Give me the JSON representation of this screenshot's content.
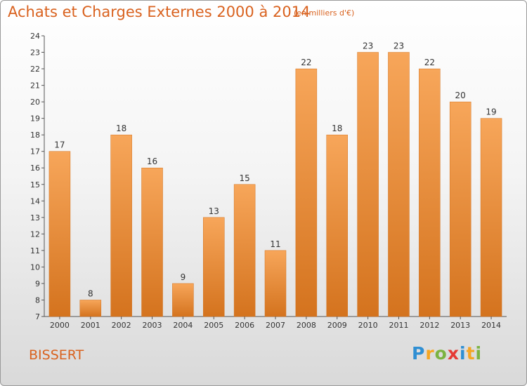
{
  "chart_data": {
    "type": "bar",
    "title": "Achats et Charges Externes 2000 à 2014",
    "subtitle": "(en milliers d'€)",
    "categories": [
      "2000",
      "2001",
      "2002",
      "2003",
      "2004",
      "2005",
      "2006",
      "2007",
      "2008",
      "2009",
      "2010",
      "2011",
      "2012",
      "2013",
      "2014"
    ],
    "values": [
      17,
      8,
      18,
      16,
      9,
      13,
      15,
      11,
      22,
      18,
      23,
      23,
      22,
      20,
      19
    ],
    "ylim": [
      7,
      24
    ],
    "yticks": [
      7,
      8,
      9,
      10,
      11,
      12,
      13,
      14,
      15,
      16,
      17,
      18,
      19,
      20,
      21,
      22,
      23,
      24
    ],
    "grid": false,
    "bar_color_top": "#f7a65a",
    "bar_color_bottom": "#d4731e"
  },
  "commune": "BISSERT",
  "logo": {
    "letters": [
      "P",
      "r",
      "o",
      "x",
      "i",
      "t",
      "i"
    ],
    "colors": [
      "#2f8fd3",
      "#f5a623",
      "#7cb342",
      "#e53935",
      "#2f8fd3",
      "#f5a623",
      "#7cb342"
    ]
  }
}
